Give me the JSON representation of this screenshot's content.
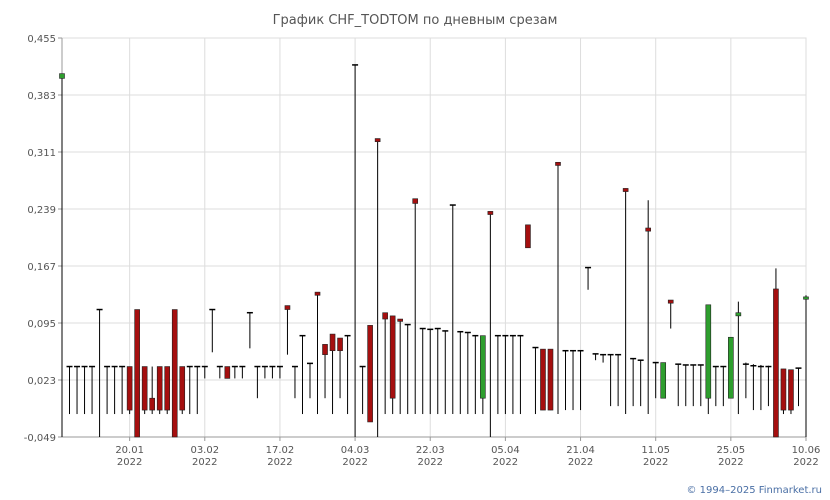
{
  "colors": {
    "up": "#2e9e2e",
    "down": "#a50f0f",
    "grid": "#dddddd",
    "axis": "#999999",
    "wick": "#000000",
    "text": "#555555",
    "link": "#4a6fa5"
  },
  "footer": {
    "copyright": "© 1994–2025 Finmarket.ru"
  },
  "chart_data": {
    "type": "candlestick",
    "title": "График CHF_TODTOM по дневным срезам",
    "ylim": [
      -0.049,
      0.455
    ],
    "yticks": [
      "0,455",
      "0,383",
      "0,311",
      "0,239",
      "0,167",
      "0,095",
      "0,023",
      "-0,049"
    ],
    "ytick_values": [
      0.455,
      0.383,
      0.311,
      0.239,
      0.167,
      0.095,
      0.023,
      -0.049
    ],
    "xticks": [
      {
        "date": "20.01",
        "year": "2022",
        "index": 9
      },
      {
        "date": "03.02",
        "year": "2022",
        "index": 19
      },
      {
        "date": "17.02",
        "year": "2022",
        "index": 29
      },
      {
        "date": "04.03",
        "year": "2022",
        "index": 39
      },
      {
        "date": "22.03",
        "year": "2022",
        "index": 49
      },
      {
        "date": "05.04",
        "year": "2022",
        "index": 59
      },
      {
        "date": "21.04",
        "year": "2022",
        "index": 69
      },
      {
        "date": "11.05",
        "year": "2022",
        "index": 79
      },
      {
        "date": "25.05",
        "year": "2022",
        "index": 89
      },
      {
        "date": "10.06",
        "year": "2022",
        "index": 99
      }
    ],
    "candles": [
      {
        "o": 0.404,
        "h": 0.41,
        "l": -0.049,
        "c": 0.41
      },
      {
        "o": 0.04,
        "h": 0.04,
        "l": -0.02,
        "c": 0.04
      },
      {
        "o": 0.04,
        "h": 0.04,
        "l": -0.02,
        "c": 0.04
      },
      {
        "o": 0.04,
        "h": 0.04,
        "l": -0.02,
        "c": 0.04
      },
      {
        "o": 0.04,
        "h": 0.04,
        "l": -0.02,
        "c": 0.04
      },
      {
        "o": 0.112,
        "h": 0.112,
        "l": -0.049,
        "c": 0.112
      },
      {
        "o": 0.04,
        "h": 0.04,
        "l": -0.02,
        "c": 0.04
      },
      {
        "o": 0.04,
        "h": 0.04,
        "l": -0.02,
        "c": 0.04
      },
      {
        "o": 0.04,
        "h": 0.04,
        "l": -0.02,
        "c": 0.04
      },
      {
        "o": 0.04,
        "h": 0.04,
        "l": -0.02,
        "c": -0.015
      },
      {
        "o": 0.112,
        "h": 0.112,
        "l": -0.049,
        "c": -0.049
      },
      {
        "o": 0.04,
        "h": 0.04,
        "l": -0.02,
        "c": -0.015
      },
      {
        "o": 0.0,
        "h": 0.04,
        "l": -0.02,
        "c": -0.015
      },
      {
        "o": 0.04,
        "h": 0.04,
        "l": -0.02,
        "c": -0.015
      },
      {
        "o": 0.04,
        "h": 0.04,
        "l": -0.02,
        "c": -0.015
      },
      {
        "o": 0.112,
        "h": 0.112,
        "l": -0.049,
        "c": -0.049
      },
      {
        "o": 0.04,
        "h": 0.04,
        "l": -0.02,
        "c": -0.015
      },
      {
        "o": 0.04,
        "h": 0.04,
        "l": -0.02,
        "c": 0.04
      },
      {
        "o": 0.04,
        "h": 0.04,
        "l": -0.02,
        "c": 0.04
      },
      {
        "o": 0.04,
        "h": 0.04,
        "l": 0.025,
        "c": 0.04
      },
      {
        "o": 0.112,
        "h": 0.112,
        "l": 0.058,
        "c": 0.112
      },
      {
        "o": 0.04,
        "h": 0.04,
        "l": 0.025,
        "c": 0.04
      },
      {
        "o": 0.04,
        "h": 0.04,
        "l": 0.025,
        "c": 0.025
      },
      {
        "o": 0.04,
        "h": 0.04,
        "l": 0.025,
        "c": 0.04
      },
      {
        "o": 0.04,
        "h": 0.04,
        "l": 0.025,
        "c": 0.04
      },
      {
        "o": 0.108,
        "h": 0.108,
        "l": 0.063,
        "c": 0.108
      },
      {
        "o": 0.04,
        "h": 0.04,
        "l": 0.0,
        "c": 0.04
      },
      {
        "o": 0.04,
        "h": 0.04,
        "l": 0.025,
        "c": 0.04
      },
      {
        "o": 0.04,
        "h": 0.04,
        "l": 0.025,
        "c": 0.04
      },
      {
        "o": 0.04,
        "h": 0.04,
        "l": 0.025,
        "c": 0.04
      },
      {
        "o": 0.117,
        "h": 0.117,
        "l": 0.055,
        "c": 0.112
      },
      {
        "o": 0.04,
        "h": 0.04,
        "l": 0.0,
        "c": 0.04
      },
      {
        "o": 0.079,
        "h": 0.079,
        "l": -0.02,
        "c": 0.079
      },
      {
        "o": 0.044,
        "h": 0.044,
        "l": 0.0,
        "c": 0.044
      },
      {
        "o": 0.134,
        "h": 0.134,
        "l": -0.02,
        "c": 0.13
      },
      {
        "o": 0.068,
        "h": 0.068,
        "l": 0.0,
        "c": 0.055
      },
      {
        "o": 0.081,
        "h": 0.081,
        "l": -0.02,
        "c": 0.06
      },
      {
        "o": 0.076,
        "h": 0.076,
        "l": 0.0,
        "c": 0.06
      },
      {
        "o": 0.079,
        "h": 0.079,
        "l": -0.02,
        "c": 0.079
      },
      {
        "o": 0.421,
        "h": 0.421,
        "l": -0.049,
        "c": 0.421
      },
      {
        "o": 0.04,
        "h": 0.04,
        "l": -0.02,
        "c": 0.04
      },
      {
        "o": 0.092,
        "h": 0.092,
        "l": -0.03,
        "c": -0.03
      },
      {
        "o": 0.328,
        "h": 0.328,
        "l": -0.049,
        "c": 0.324
      },
      {
        "o": 0.108,
        "h": 0.108,
        "l": -0.02,
        "c": 0.1
      },
      {
        "o": 0.104,
        "h": 0.104,
        "l": -0.02,
        "c": 0.0
      },
      {
        "o": 0.1,
        "h": 0.1,
        "l": -0.02,
        "c": 0.097
      },
      {
        "o": 0.093,
        "h": 0.093,
        "l": -0.02,
        "c": 0.091
      },
      {
        "o": 0.252,
        "h": 0.252,
        "l": -0.02,
        "c": 0.246
      },
      {
        "o": 0.088,
        "h": 0.088,
        "l": -0.02,
        "c": 0.088
      },
      {
        "o": 0.087,
        "h": 0.087,
        "l": -0.02,
        "c": 0.087
      },
      {
        "o": 0.088,
        "h": 0.088,
        "l": -0.02,
        "c": 0.086
      },
      {
        "o": 0.085,
        "h": 0.085,
        "l": -0.02,
        "c": 0.085
      },
      {
        "o": 0.244,
        "h": 0.244,
        "l": -0.02,
        "c": 0.244
      },
      {
        "o": 0.084,
        "h": 0.084,
        "l": -0.02,
        "c": 0.084
      },
      {
        "o": 0.083,
        "h": 0.083,
        "l": -0.02,
        "c": 0.083
      },
      {
        "o": 0.079,
        "h": 0.079,
        "l": -0.02,
        "c": 0.079
      },
      {
        "o": 0.0,
        "h": 0.079,
        "l": -0.02,
        "c": 0.079
      },
      {
        "o": 0.236,
        "h": 0.236,
        "l": -0.049,
        "c": 0.232
      },
      {
        "o": 0.079,
        "h": 0.079,
        "l": -0.02,
        "c": 0.079
      },
      {
        "o": 0.079,
        "h": 0.079,
        "l": -0.02,
        "c": 0.079
      },
      {
        "o": 0.079,
        "h": 0.079,
        "l": -0.02,
        "c": 0.079
      },
      {
        "o": 0.079,
        "h": 0.079,
        "l": -0.02,
        "c": 0.079
      },
      {
        "o": 0.219,
        "h": 0.219,
        "l": 0.19,
        "c": 0.19
      },
      {
        "o": 0.064,
        "h": 0.064,
        "l": -0.02,
        "c": 0.064
      },
      {
        "o": 0.062,
        "h": 0.062,
        "l": -0.015,
        "c": -0.015
      },
      {
        "o": 0.062,
        "h": 0.062,
        "l": -0.015,
        "c": -0.015
      },
      {
        "o": 0.298,
        "h": 0.298,
        "l": -0.02,
        "c": 0.294
      },
      {
        "o": 0.06,
        "h": 0.06,
        "l": -0.015,
        "c": 0.06
      },
      {
        "o": 0.06,
        "h": 0.06,
        "l": -0.015,
        "c": 0.06
      },
      {
        "o": 0.06,
        "h": 0.06,
        "l": -0.015,
        "c": 0.06
      },
      {
        "o": 0.165,
        "h": 0.165,
        "l": 0.137,
        "c": 0.165
      },
      {
        "o": 0.056,
        "h": 0.056,
        "l": 0.048,
        "c": 0.056
      },
      {
        "o": 0.055,
        "h": 0.055,
        "l": 0.045,
        "c": 0.055
      },
      {
        "o": 0.055,
        "h": 0.055,
        "l": -0.01,
        "c": 0.055
      },
      {
        "o": 0.055,
        "h": 0.055,
        "l": -0.01,
        "c": 0.055
      },
      {
        "o": 0.265,
        "h": 0.265,
        "l": -0.02,
        "c": 0.261
      },
      {
        "o": 0.05,
        "h": 0.05,
        "l": -0.01,
        "c": 0.05
      },
      {
        "o": 0.048,
        "h": 0.048,
        "l": -0.01,
        "c": 0.048
      },
      {
        "o": 0.215,
        "h": 0.25,
        "l": -0.02,
        "c": 0.211
      },
      {
        "o": 0.045,
        "h": 0.045,
        "l": 0.0,
        "c": 0.045
      },
      {
        "o": 0.0,
        "h": 0.045,
        "l": 0.0,
        "c": 0.045
      },
      {
        "o": 0.124,
        "h": 0.124,
        "l": 0.088,
        "c": 0.12
      },
      {
        "o": 0.043,
        "h": 0.043,
        "l": -0.01,
        "c": 0.043
      },
      {
        "o": 0.042,
        "h": 0.042,
        "l": -0.01,
        "c": 0.042
      },
      {
        "o": 0.042,
        "h": 0.042,
        "l": -0.01,
        "c": 0.042
      },
      {
        "o": 0.042,
        "h": 0.042,
        "l": -0.01,
        "c": 0.042
      },
      {
        "o": 0.0,
        "h": 0.118,
        "l": -0.02,
        "c": 0.118
      },
      {
        "o": 0.04,
        "h": 0.04,
        "l": -0.01,
        "c": 0.04
      },
      {
        "o": 0.04,
        "h": 0.04,
        "l": -0.01,
        "c": 0.04
      },
      {
        "o": 0.0,
        "h": 0.077,
        "l": 0.0,
        "c": 0.077
      },
      {
        "o": 0.104,
        "h": 0.122,
        "l": -0.02,
        "c": 0.108
      },
      {
        "o": 0.04,
        "h": 0.045,
        "l": 0.0,
        "c": 0.043
      },
      {
        "o": 0.04,
        "h": 0.043,
        "l": -0.015,
        "c": 0.041
      },
      {
        "o": 0.04,
        "h": 0.042,
        "l": -0.015,
        "c": 0.04
      },
      {
        "o": 0.04,
        "h": 0.041,
        "l": -0.01,
        "c": 0.04
      },
      {
        "o": 0.138,
        "h": 0.164,
        "l": -0.049,
        "c": -0.049
      },
      {
        "o": 0.037,
        "h": 0.037,
        "l": -0.02,
        "c": -0.015
      },
      {
        "o": 0.036,
        "h": 0.036,
        "l": -0.02,
        "c": -0.015
      },
      {
        "o": 0.038,
        "h": 0.038,
        "l": -0.01,
        "c": 0.038
      },
      {
        "o": 0.125,
        "h": 0.13,
        "l": -0.049,
        "c": 0.128
      }
    ]
  }
}
